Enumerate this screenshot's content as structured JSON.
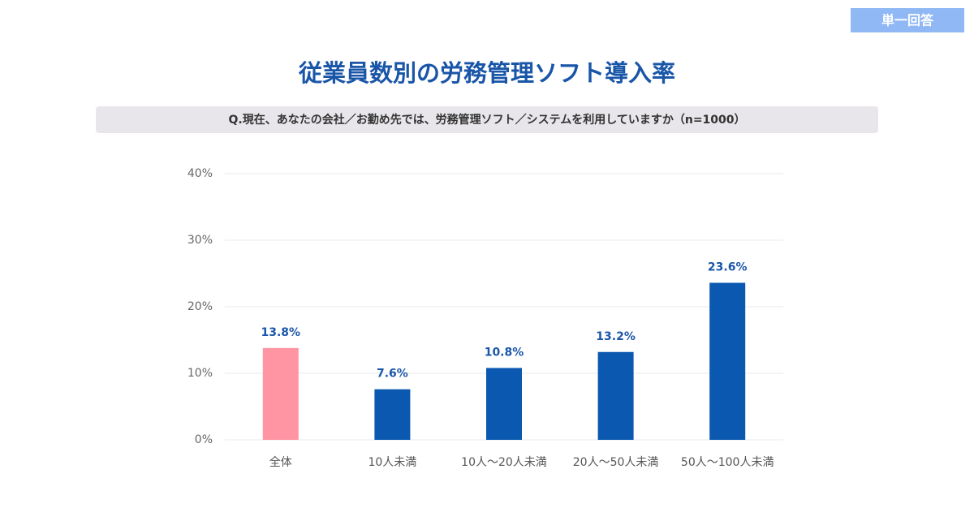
{
  "chart_data": {
    "type": "bar",
    "badge": "単一回答",
    "title": "従業員数別の労務管理ソフト導入率",
    "subtitle": "Q.現在、あなたの会社／お勤め先では、労務管理ソフト／システムを利用していますか（n=1000）",
    "categories": [
      "全体",
      "10人未満",
      "10人～20人未満",
      "20人～50人未満",
      "50人～100人未満"
    ],
    "values": [
      13.8,
      7.6,
      10.8,
      13.2,
      23.6
    ],
    "value_labels": [
      "13.8%",
      "7.6%",
      "10.8%",
      "13.2%",
      "23.6%"
    ],
    "colors": [
      "#ff94a2",
      "#0a58b0",
      "#0a58b0",
      "#0a58b0",
      "#0a58b0"
    ],
    "ylim": [
      0,
      40
    ],
    "yticks": [
      {
        "value": 0,
        "label": "0%"
      },
      {
        "value": 10,
        "label": "10%"
      },
      {
        "value": 20,
        "label": "20%"
      },
      {
        "value": 30,
        "label": "30%"
      },
      {
        "value": 40,
        "label": "40%"
      }
    ],
    "grid": true
  }
}
